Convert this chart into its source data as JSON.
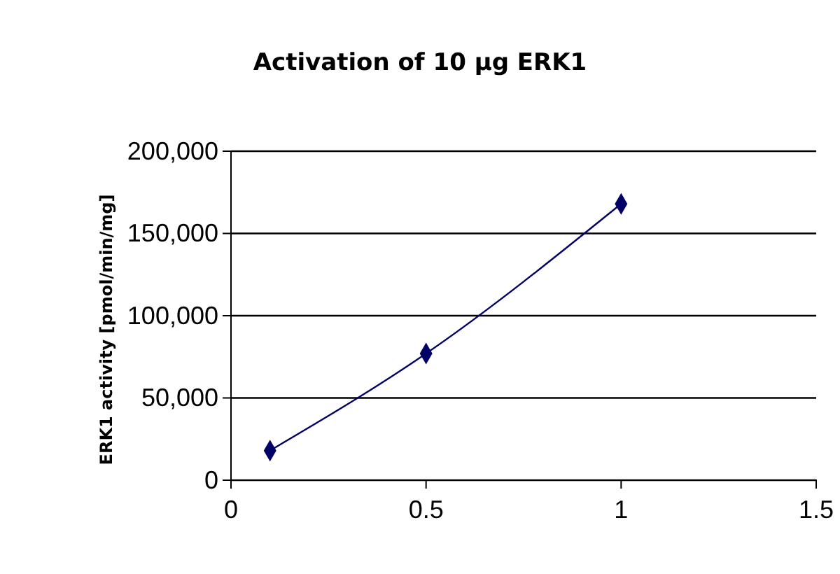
{
  "chart_data": {
    "type": "line",
    "title": "Activation of 10 µg ERK1",
    "ylabel": "ERK1 activity [pmol/min/mg]",
    "x": [
      0.1,
      0.5,
      1
    ],
    "series": [
      {
        "color": "#000066",
        "values": [
          18000,
          77000,
          168000
        ]
      }
    ],
    "xlim": [
      0,
      1.5
    ],
    "xticks": [
      0,
      0.5,
      1,
      1.5
    ],
    "ylim": [
      0,
      200000
    ],
    "yticks": [
      {
        "value": 0,
        "label": "0"
      },
      {
        "value": 50000,
        "label": "50,000"
      },
      {
        "value": 100000,
        "label": "100,000"
      },
      {
        "value": 150000,
        "label": "150,000"
      },
      {
        "value": 200000,
        "label": "200,000"
      }
    ],
    "grid": "y",
    "marker": "diamond",
    "line_style": "solid"
  }
}
